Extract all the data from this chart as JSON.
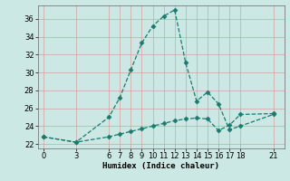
{
  "title": "",
  "xlabel": "Humidex (Indice chaleur)",
  "ylabel": "",
  "bg_color": "#cce8e4",
  "grid_color_major": "#f0b8b8",
  "grid_color_minor": "#e8d0d0",
  "line_color": "#1a7a6e",
  "line1_x": [
    0,
    3,
    6,
    7,
    8,
    9,
    10,
    11,
    12,
    13,
    14,
    15,
    16,
    17,
    18,
    21
  ],
  "line1_y": [
    22.8,
    22.2,
    25.0,
    27.2,
    30.3,
    33.3,
    35.2,
    36.3,
    37.0,
    31.1,
    26.8,
    27.8,
    26.5,
    23.6,
    24.0,
    25.3
  ],
  "line2_x": [
    0,
    3,
    6,
    7,
    8,
    9,
    10,
    11,
    12,
    13,
    14,
    15,
    16,
    17,
    18,
    21
  ],
  "line2_y": [
    22.8,
    22.2,
    22.8,
    23.1,
    23.4,
    23.7,
    24.0,
    24.3,
    24.6,
    24.8,
    24.9,
    24.8,
    23.5,
    24.1,
    25.3,
    25.4
  ],
  "ylim": [
    21.5,
    37.5
  ],
  "xlim": [
    -0.5,
    22
  ],
  "yticks": [
    22,
    24,
    26,
    28,
    30,
    32,
    34,
    36
  ],
  "xticks": [
    0,
    3,
    6,
    7,
    8,
    9,
    10,
    11,
    12,
    13,
    14,
    15,
    16,
    17,
    18,
    21
  ],
  "label_fontsize": 6.5,
  "tick_fontsize": 6
}
